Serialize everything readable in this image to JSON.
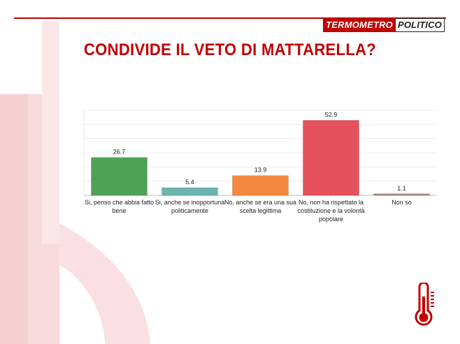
{
  "logo": {
    "part_a": "TERMOMETRO",
    "part_b": "POLITICO"
  },
  "title": "CONDIVIDE IL VETO DI MATTARELLA?",
  "colors": {
    "accent": "#c00000",
    "decor": "#f6d4d6"
  },
  "chart_data": {
    "type": "bar",
    "title": "CONDIVIDE IL VETO DI MATTARELLA?",
    "categories": [
      "Si, penso che abbia fatto bene",
      "Si, anche se inopportuna politicamente",
      "No, anche se era una sua scelta legittima",
      "No, non ha rispettato la costituzione e la volontà popolare",
      "Non so"
    ],
    "values": [
      26.7,
      5.4,
      13.9,
      52.9,
      1.1
    ],
    "value_labels": [
      "26.7",
      "5.4",
      "13.9",
      "52.9",
      "1.1"
    ],
    "bar_colors": [
      "#4fa155",
      "#6bb5b1",
      "#f4883e",
      "#e4505b",
      "#a9877c"
    ],
    "ylim": [
      0,
      60
    ],
    "grid": true,
    "xlabel": "",
    "ylabel": ""
  },
  "icons": {
    "thermometer": "thermometer-icon"
  }
}
